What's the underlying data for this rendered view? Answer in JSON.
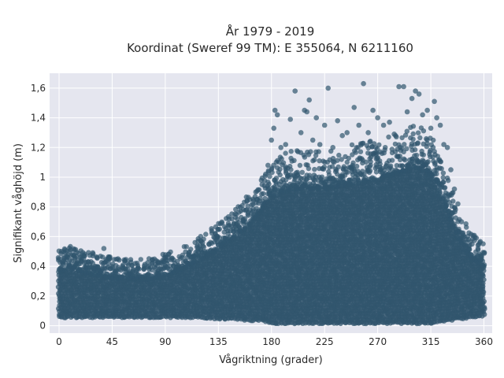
{
  "chart_data": {
    "type": "scatter",
    "title": "År 1979 - 2019",
    "subtitle": "Koordinat (Sweref 99 TM): E 355064, N 6211160",
    "xlabel": "Vågriktning (grader)",
    "ylabel": "Signifikant våghöjd (m)",
    "xlim": [
      -8,
      367
    ],
    "ylim": [
      -0.05,
      1.7
    ],
    "x_ticks": [
      0,
      45,
      90,
      135,
      180,
      225,
      270,
      315,
      360
    ],
    "x_tick_labels": [
      "0",
      "45",
      "90",
      "135",
      "180",
      "225",
      "270",
      "315",
      "360"
    ],
    "y_ticks": [
      0,
      0.2,
      0.4,
      0.6,
      0.8,
      1.0,
      1.2,
      1.4,
      1.6
    ],
    "y_tick_labels": [
      "0",
      "0,2",
      "0,4",
      "0,6",
      "0,8",
      "1",
      "1,2",
      "1,4",
      "1,6"
    ],
    "grid": true,
    "legend": "none",
    "colors": {
      "marker": "#31566e",
      "plot_background": "#e5e6ef",
      "grid": "#ffffff"
    },
    "envelope": {
      "x": [
        0,
        10,
        20,
        30,
        45,
        60,
        75,
        90,
        105,
        120,
        135,
        150,
        160,
        170,
        175,
        180,
        190,
        200,
        210,
        225,
        240,
        255,
        270,
        285,
        300,
        310,
        315,
        320,
        330,
        340,
        350,
        360
      ],
      "y_low": [
        0.06,
        0.06,
        0.06,
        0.06,
        0.06,
        0.06,
        0.06,
        0.06,
        0.06,
        0.06,
        0.05,
        0.05,
        0.04,
        0.04,
        0.03,
        0.02,
        0.02,
        0.02,
        0.02,
        0.02,
        0.02,
        0.02,
        0.02,
        0.02,
        0.02,
        0.02,
        0.02,
        0.03,
        0.04,
        0.05,
        0.06,
        0.07
      ],
      "y_core_high": [
        0.36,
        0.38,
        0.36,
        0.34,
        0.32,
        0.31,
        0.31,
        0.33,
        0.38,
        0.44,
        0.51,
        0.6,
        0.66,
        0.76,
        0.82,
        0.86,
        0.9,
        0.92,
        0.92,
        0.92,
        0.94,
        0.96,
        0.98,
        1.02,
        1.06,
        1.05,
        1.02,
        0.95,
        0.75,
        0.55,
        0.45,
        0.4
      ]
    },
    "outliers": [
      {
        "x": 0,
        "y": 0.45
      },
      {
        "x": 2,
        "y": 0.5
      },
      {
        "x": 5,
        "y": 0.51
      },
      {
        "x": 9,
        "y": 0.5
      },
      {
        "x": 13,
        "y": 0.51
      },
      {
        "x": 18,
        "y": 0.46
      },
      {
        "x": 25,
        "y": 0.43
      },
      {
        "x": 38,
        "y": 0.52
      },
      {
        "x": 42,
        "y": 0.42
      },
      {
        "x": 50,
        "y": 0.45
      },
      {
        "x": 58,
        "y": 0.42
      },
      {
        "x": 66,
        "y": 0.38
      },
      {
        "x": 88,
        "y": 0.48
      },
      {
        "x": 98,
        "y": 0.42
      },
      {
        "x": 112,
        "y": 0.45
      },
      {
        "x": 118,
        "y": 0.52
      },
      {
        "x": 127,
        "y": 0.55
      },
      {
        "x": 140,
        "y": 0.63
      },
      {
        "x": 150,
        "y": 0.68
      },
      {
        "x": 160,
        "y": 0.75
      },
      {
        "x": 168,
        "y": 0.85
      },
      {
        "x": 172,
        "y": 0.95
      },
      {
        "x": 175,
        "y": 1.02
      },
      {
        "x": 177,
        "y": 1.08
      },
      {
        "x": 180,
        "y": 1.25
      },
      {
        "x": 182,
        "y": 1.33
      },
      {
        "x": 183,
        "y": 1.45
      },
      {
        "x": 185,
        "y": 1.42
      },
      {
        "x": 188,
        "y": 1.2
      },
      {
        "x": 192,
        "y": 1.22
      },
      {
        "x": 196,
        "y": 1.39
      },
      {
        "x": 200,
        "y": 1.58
      },
      {
        "x": 205,
        "y": 1.3
      },
      {
        "x": 208,
        "y": 1.45
      },
      {
        "x": 210,
        "y": 1.44
      },
      {
        "x": 212,
        "y": 1.52
      },
      {
        "x": 215,
        "y": 1.25
      },
      {
        "x": 218,
        "y": 1.4
      },
      {
        "x": 221,
        "y": 1.22
      },
      {
        "x": 225,
        "y": 1.35
      },
      {
        "x": 228,
        "y": 1.6
      },
      {
        "x": 232,
        "y": 1.2
      },
      {
        "x": 236,
        "y": 1.38
      },
      {
        "x": 240,
        "y": 1.28
      },
      {
        "x": 244,
        "y": 1.3
      },
      {
        "x": 250,
        "y": 1.47
      },
      {
        "x": 254,
        "y": 1.35
      },
      {
        "x": 258,
        "y": 1.63
      },
      {
        "x": 262,
        "y": 1.3
      },
      {
        "x": 266,
        "y": 1.45
      },
      {
        "x": 270,
        "y": 1.4
      },
      {
        "x": 275,
        "y": 1.35
      },
      {
        "x": 280,
        "y": 1.37
      },
      {
        "x": 284,
        "y": 1.29
      },
      {
        "x": 288,
        "y": 1.61
      },
      {
        "x": 292,
        "y": 1.61
      },
      {
        "x": 295,
        "y": 1.44
      },
      {
        "x": 299,
        "y": 1.53
      },
      {
        "x": 302,
        "y": 1.58
      },
      {
        "x": 305,
        "y": 1.56
      },
      {
        "x": 308,
        "y": 1.42
      },
      {
        "x": 312,
        "y": 1.45
      },
      {
        "x": 315,
        "y": 1.33
      },
      {
        "x": 318,
        "y": 1.51
      },
      {
        "x": 320,
        "y": 1.4
      },
      {
        "x": 323,
        "y": 1.35
      },
      {
        "x": 326,
        "y": 1.22
      },
      {
        "x": 329,
        "y": 1.2
      },
      {
        "x": 332,
        "y": 1.05
      },
      {
        "x": 335,
        "y": 0.92
      },
      {
        "x": 338,
        "y": 0.82
      },
      {
        "x": 341,
        "y": 0.7
      },
      {
        "x": 345,
        "y": 0.58
      },
      {
        "x": 350,
        "y": 0.55
      },
      {
        "x": 355,
        "y": 0.52
      },
      {
        "x": 358,
        "y": 0.47
      }
    ]
  }
}
